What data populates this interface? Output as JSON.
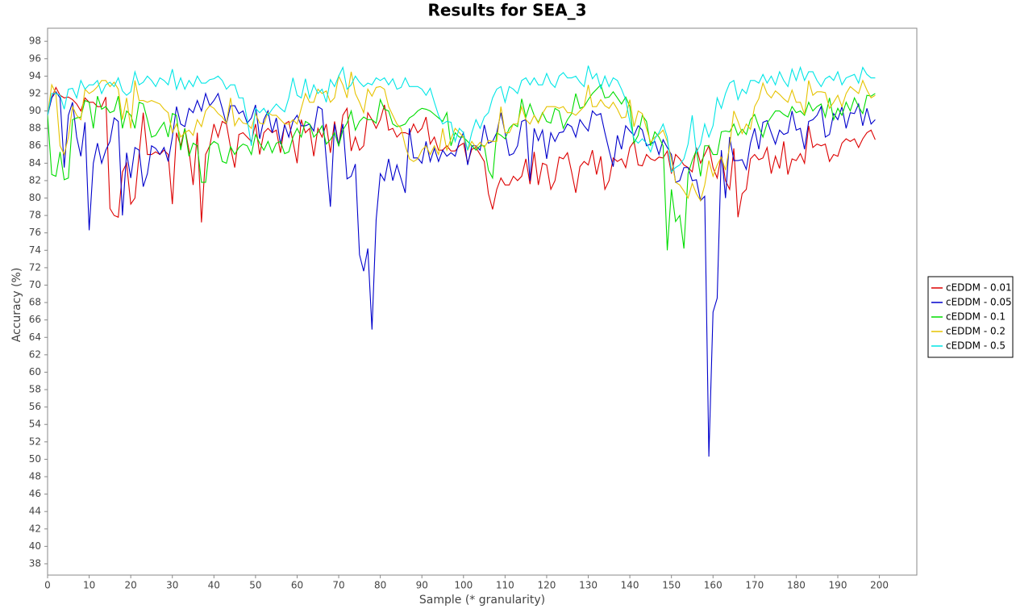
{
  "chart_data": {
    "type": "line",
    "title": "Results for SEA_3",
    "x_label": "Sample (* granularity)",
    "y_label": "Accuracy (%)",
    "x": [
      0,
      1,
      2,
      3,
      4,
      5,
      6,
      7,
      8,
      9,
      10,
      11,
      12,
      13,
      14,
      15,
      16,
      17,
      18,
      19,
      20,
      21,
      22,
      23,
      24,
      25,
      26,
      27,
      28,
      29,
      30,
      31,
      32,
      33,
      34,
      35,
      36,
      37,
      38,
      39,
      40,
      41,
      42,
      43,
      44,
      45,
      46,
      47,
      48,
      49,
      50,
      51,
      52,
      53,
      54,
      55,
      56,
      57,
      58,
      59,
      60,
      61,
      62,
      63,
      64,
      65,
      66,
      67,
      68,
      69,
      70,
      71,
      72,
      73,
      74,
      75,
      76,
      77,
      78,
      79,
      80,
      81,
      82,
      83,
      84,
      85,
      86,
      87,
      88,
      89,
      90,
      91,
      92,
      93,
      94,
      95,
      96,
      97,
      98,
      99,
      100,
      101,
      102,
      103,
      104,
      105,
      106,
      107,
      108,
      109,
      110,
      111,
      112,
      113,
      114,
      115,
      116,
      117,
      118,
      119,
      120,
      121,
      122,
      123,
      124,
      125,
      126,
      127,
      128,
      129,
      130,
      131,
      132,
      133,
      134,
      135,
      136,
      137,
      138,
      139,
      140,
      141,
      142,
      143,
      144,
      145,
      146,
      147,
      148,
      149,
      150,
      151,
      152,
      153,
      154,
      155,
      156,
      157,
      158,
      159,
      160,
      161,
      162,
      163,
      164,
      165,
      166,
      167,
      168,
      169,
      170,
      171,
      172,
      173,
      174,
      175,
      176,
      177,
      178,
      179,
      180,
      181,
      182,
      183,
      184,
      185,
      186,
      187,
      188,
      189,
      190,
      191,
      192,
      193,
      194,
      195,
      196,
      197,
      198,
      199
    ],
    "series": [
      {
        "name": "cEDDM - 0.01",
        "color": "#dd0000",
        "values": [
          89.5,
          91.5,
          92.7,
          91.8,
          91.5,
          91.6,
          91.3,
          90.8,
          90,
          91.5,
          91,
          91,
          90.5,
          90.5,
          91.6,
          78.8,
          78,
          77.8,
          83,
          84,
          79.3,
          80,
          85,
          89.8,
          85,
          85,
          85.3,
          85,
          85.5,
          85,
          79.3,
          87.5,
          86,
          88,
          85.5,
          81.5,
          87.5,
          77.2,
          85,
          86,
          88.5,
          87,
          88.8,
          88.5,
          85.8,
          83.5,
          87.3,
          87.5,
          87,
          86.5,
          88.5,
          85,
          87.5,
          88,
          87.5,
          87.8,
          85.2,
          88.5,
          88.8,
          86.5,
          84,
          89,
          87.5,
          88,
          84.8,
          88,
          87,
          88.5,
          85.2,
          88.8,
          86,
          89.5,
          90.3,
          85.4,
          87,
          85.5,
          86,
          89.8,
          89,
          88,
          89,
          90.7,
          87.8,
          88,
          87,
          87.5,
          87.5,
          87.3,
          88.5,
          87.5,
          88,
          89.3,
          86.2,
          87,
          85.5,
          85.5,
          86,
          85.4,
          85.4,
          86,
          86.3,
          84,
          85.6,
          85.8,
          85,
          84.2,
          80.5,
          78.7,
          81,
          82.3,
          81.5,
          81.5,
          82.5,
          82,
          82.5,
          84.5,
          81.6,
          85.3,
          81.5,
          84,
          83.8,
          81,
          82,
          84.7,
          84.5,
          85.2,
          83,
          80.6,
          83.6,
          84.2,
          83.8,
          85.5,
          82.7,
          84.8,
          81,
          82,
          84.6,
          84.2,
          84.5,
          83.5,
          85.8,
          86.5,
          83.8,
          83.7,
          85,
          84.5,
          84.3,
          84.7,
          84.6,
          85.4,
          82.8,
          85,
          84.5,
          83.8,
          83.5,
          83,
          85.8,
          84,
          85,
          86,
          83.5,
          82.3,
          85,
          82,
          81,
          85.7,
          77.8,
          80.5,
          81,
          84.5,
          85,
          84.4,
          84.6,
          85.8,
          82.8,
          84.8,
          83.4,
          86.5,
          82.7,
          84.5,
          84.3,
          85.1,
          84,
          88.3,
          85.8,
          86.2,
          86,
          86.2,
          84.2,
          85,
          84.8,
          86.3,
          86.8,
          86.5,
          86.8,
          85.8,
          86.8,
          87.5,
          87.8,
          86.7
        ]
      },
      {
        "name": "cEDDM - 0.05",
        "color": "#0000cc",
        "values": [
          89.5,
          91.5,
          92.2,
          91.5,
          83.5,
          89.5,
          91,
          87,
          84.8,
          88.7,
          76.3,
          84,
          86.3,
          84,
          85.5,
          86.5,
          89.2,
          88.8,
          78,
          85.2,
          82.3,
          85.8,
          85.5,
          81.3,
          82.8,
          86,
          85.7,
          85,
          85.8,
          84.2,
          87,
          90.5,
          88.5,
          88.2,
          90.3,
          89.8,
          91.2,
          90,
          92,
          90.6,
          91.2,
          92,
          90.3,
          88.5,
          90.6,
          90.6,
          89.7,
          90,
          88.6,
          89.2,
          90.7,
          86.8,
          89,
          90,
          87.5,
          89.2,
          86.2,
          88.4,
          87,
          88.8,
          89.5,
          88.3,
          88.3,
          88.5,
          87.7,
          90.5,
          90.2,
          84.5,
          79,
          88.5,
          86,
          88.5,
          82.2,
          82.5,
          83.9,
          73.5,
          71.6,
          74.2,
          64.9,
          77.5,
          82.8,
          82,
          84.5,
          82,
          83.8,
          82.2,
          80.6,
          88,
          84.6,
          84.6,
          84,
          86.5,
          84.2,
          85.7,
          84.2,
          85.5,
          84.8,
          85.2,
          84.8,
          86.5,
          87.5,
          83.8,
          86,
          86,
          85.5,
          88.4,
          86.3,
          86.5,
          87.5,
          89.8,
          87.5,
          84.9,
          85.1,
          86,
          88.8,
          89,
          82,
          88,
          86.6,
          87.8,
          84.5,
          87.5,
          86.5,
          87.5,
          87.6,
          88.5,
          88.2,
          87,
          89,
          88.3,
          87.7,
          90,
          89.5,
          89.7,
          87.5,
          85.5,
          83.6,
          87.2,
          85.6,
          88.3,
          87.7,
          87.2,
          88.3,
          87.8,
          86,
          86.2,
          86.5,
          85,
          86.7,
          85.8,
          85,
          81.8,
          82,
          83.5,
          83.5,
          82,
          82.1,
          79.7,
          80.2,
          50.3,
          66.9,
          68.5,
          85.5,
          80,
          87,
          84.3,
          84.3,
          84.4,
          83.3,
          86.3,
          88,
          85.6,
          88.7,
          88.9,
          87.5,
          86.2,
          87.8,
          87.3,
          87.5,
          90,
          87.8,
          88,
          85.6,
          88.8,
          89,
          89.5,
          90.5,
          87,
          87.3,
          89.7,
          89,
          90.5,
          88,
          89.8,
          89.7,
          90.8,
          88.3,
          90.3,
          88.5,
          89
        ]
      },
      {
        "name": "cEDDM - 0.1",
        "color": "#00dd00",
        "values": [
          89.5,
          82.7,
          82.5,
          85.3,
          82.1,
          82.3,
          89,
          89.2,
          89.3,
          91.2,
          91,
          88,
          91.7,
          90.2,
          90.5,
          89.8,
          90,
          91.7,
          88,
          90,
          89.5,
          88,
          91,
          90.8,
          89,
          87,
          87.2,
          88,
          88.7,
          87,
          89.7,
          89.5,
          85.5,
          88,
          84.8,
          86.3,
          86,
          81.8,
          81.8,
          86,
          86.5,
          86.2,
          84.2,
          84,
          85.9,
          85,
          85.8,
          86.2,
          86,
          85,
          87.3,
          86.3,
          85.5,
          86.5,
          85.2,
          86.3,
          86.5,
          85.1,
          85.3,
          87,
          88,
          87,
          88.8,
          88.5,
          87,
          87.5,
          88.3,
          86.2,
          86.7,
          87.5,
          86,
          87.8,
          88.6,
          90,
          87.8,
          88.8,
          89.3,
          89,
          89,
          88.6,
          91.3,
          90.2,
          90,
          88.5,
          88.2,
          88.3,
          88.5,
          89.2,
          89.5,
          90,
          90.3,
          90.2,
          90,
          89.6,
          89.2,
          88.8,
          89.8,
          86,
          87.5,
          87,
          87,
          86.5,
          86,
          85.5,
          86,
          86,
          83.2,
          82.3,
          87.5,
          87.2,
          86.8,
          88,
          88.5,
          88.2,
          91.4,
          89.3,
          90.8,
          89.5,
          88.7,
          89.8,
          88.8,
          88.6,
          90.3,
          90,
          88,
          89,
          89.7,
          92,
          90.3,
          90.5,
          91.3,
          92,
          92.5,
          93,
          91.5,
          91.6,
          92.2,
          91.5,
          90.8,
          91.6,
          90.5,
          86.3,
          87.2,
          89.5,
          88.8,
          86,
          87.6,
          87,
          86,
          74,
          81,
          77.3,
          78,
          74.2,
          82.8,
          84.3,
          85.5,
          82.5,
          86,
          86,
          85,
          85,
          87.6,
          87.7,
          87.6,
          88.5,
          87.2,
          87.9,
          87.3,
          89,
          89.6,
          88.2,
          87,
          88.6,
          89.3,
          90,
          90,
          89.6,
          89.3,
          90.5,
          89.8,
          90,
          89.5,
          91,
          90,
          90.5,
          90.8,
          89.3,
          91.5,
          89,
          90.3,
          89.5,
          91,
          90,
          91.5,
          90.5,
          89.7,
          91.8,
          91.7,
          92
        ]
      },
      {
        "name": "cEDDM - 0.2",
        "color": "#e6c300",
        "values": [
          89.5,
          93,
          92,
          86,
          85,
          87,
          90.5,
          89.5,
          89,
          92.5,
          92,
          92.3,
          92.8,
          93.5,
          93.5,
          92.8,
          93.3,
          92.5,
          89,
          91.5,
          88,
          93.5,
          91.2,
          91.2,
          91,
          91.2,
          91,
          90.8,
          90.2,
          89.8,
          87.5,
          88.5,
          87,
          87.5,
          87.8,
          87.2,
          89,
          88.2,
          90,
          90.6,
          90.3,
          89.7,
          89.3,
          88.6,
          91.5,
          88.3,
          89.2,
          88.6,
          88.5,
          88,
          89.7,
          88.6,
          88.5,
          89.8,
          89.5,
          89.5,
          89,
          88.5,
          88.5,
          89,
          88.5,
          90.3,
          92,
          91,
          91,
          92.5,
          92,
          92.3,
          91,
          91.5,
          94,
          93,
          91.5,
          94.5,
          92,
          91,
          89.8,
          92.5,
          91.7,
          92.7,
          92.8,
          92.5,
          90.5,
          89.5,
          88.5,
          88,
          86,
          84.5,
          84.2,
          84.5,
          85.5,
          86,
          85,
          86,
          85,
          88,
          85.5,
          86.8,
          88,
          87.5,
          87,
          85.5,
          86.5,
          85.8,
          86.4,
          85.8,
          86.6,
          86.5,
          86.5,
          90.5,
          87.5,
          87.5,
          88.5,
          88.5,
          90.5,
          89,
          88.5,
          89.5,
          88.6,
          89.7,
          90.5,
          90.5,
          90.5,
          90.3,
          90.5,
          89.8,
          89.8,
          89.5,
          90,
          90.5,
          93,
          90.5,
          90.5,
          91.3,
          90.6,
          90.3,
          91,
          90.2,
          89.2,
          89.3,
          91.3,
          88.2,
          90,
          89.7,
          88,
          86.4,
          87,
          87.3,
          87.8,
          86.5,
          84.5,
          81.8,
          81.5,
          80.8,
          80,
          81.7,
          80.5,
          79.7,
          81.5,
          84.3,
          82.5,
          83.8,
          84.7,
          83.2,
          86,
          90,
          88.8,
          87.4,
          88.5,
          87.9,
          90.5,
          91.4,
          93.2,
          92,
          91.5,
          92.3,
          91.9,
          91.4,
          91,
          92.4,
          91,
          91,
          89.6,
          93.5,
          91.8,
          92.2,
          92.2,
          92.1,
          90.3,
          91,
          91.8,
          90.5,
          92,
          92.8,
          92.4,
          92,
          93.5,
          92.4,
          91.5,
          91.8
        ]
      },
      {
        "name": "cEDDM - 0.5",
        "color": "#00e6e6",
        "values": [
          89.5,
          92,
          92,
          91.8,
          90.2,
          92.5,
          92.6,
          91.5,
          93.5,
          92.5,
          93,
          93,
          93.5,
          92,
          93,
          93.3,
          92.8,
          93.8,
          92.3,
          91.8,
          92.2,
          94.5,
          93,
          93.3,
          94,
          93.5,
          92.8,
          93.8,
          93.5,
          93,
          94.8,
          92.5,
          93.8,
          92.5,
          93.5,
          92.8,
          94,
          93.2,
          93.2,
          93.6,
          93.7,
          94,
          93.5,
          92.5,
          93,
          93,
          91.5,
          91.5,
          89,
          86,
          90.3,
          89.8,
          90.3,
          89.5,
          90.2,
          90.8,
          90.3,
          89.9,
          91.5,
          93.8,
          91.8,
          91.5,
          93.7,
          91.5,
          93,
          92,
          92.5,
          91,
          93.6,
          92.8,
          94,
          95,
          92.5,
          93,
          94,
          93.3,
          92.8,
          93.2,
          93,
          93.8,
          93.5,
          93.8,
          93,
          93.7,
          92.5,
          92.7,
          93.8,
          92.8,
          92.8,
          92.8,
          92.5,
          91.8,
          92.6,
          91,
          89.5,
          88.5,
          88.8,
          88.7,
          86.5,
          88,
          87.5,
          85.5,
          87.5,
          89,
          88,
          89.3,
          89.8,
          91.5,
          92.5,
          92.8,
          91,
          92.8,
          92.5,
          92,
          93.5,
          93.8,
          93,
          93.8,
          93,
          93,
          94.3,
          93.2,
          92.7,
          94,
          94.4,
          93.8,
          93.8,
          94,
          93.3,
          92.8,
          95.2,
          93.7,
          94.3,
          92.6,
          94,
          92.8,
          93.8,
          93.5,
          92.5,
          91.3,
          88.8,
          86.8,
          86.3,
          86.8,
          86.3,
          85.3,
          86.8,
          87.5,
          88.5,
          87,
          83,
          83.5,
          83.8,
          84.5,
          86.2,
          89.5,
          85.2,
          86.2,
          88.5,
          87,
          88.3,
          91.5,
          90.3,
          92,
          93.2,
          93.5,
          91.3,
          92.5,
          92,
          93.5,
          93.5,
          93.2,
          94.2,
          93.2,
          94,
          93,
          94.5,
          93.5,
          92.8,
          94.8,
          93.5,
          95,
          93.5,
          94.5,
          94.5,
          93.5,
          92.8,
          93.7,
          94,
          93.5,
          94.5,
          93,
          93.8,
          94,
          94.2,
          93.2,
          95,
          94.2,
          93.8,
          93.8
        ]
      }
    ],
    "xlim": [
      0,
      209
    ],
    "xticks": [
      0,
      10,
      20,
      30,
      40,
      50,
      60,
      70,
      80,
      90,
      100,
      110,
      120,
      130,
      140,
      150,
      160,
      170,
      180,
      190,
      200
    ],
    "ylim": [
      36.7,
      99.5
    ],
    "yticks": [
      38,
      40,
      42,
      44,
      46,
      48,
      50,
      52,
      54,
      56,
      58,
      60,
      62,
      64,
      66,
      68,
      70,
      72,
      74,
      76,
      78,
      80,
      82,
      84,
      86,
      88,
      90,
      92,
      94,
      96,
      98
    ],
    "grid": false,
    "legend": "right"
  }
}
